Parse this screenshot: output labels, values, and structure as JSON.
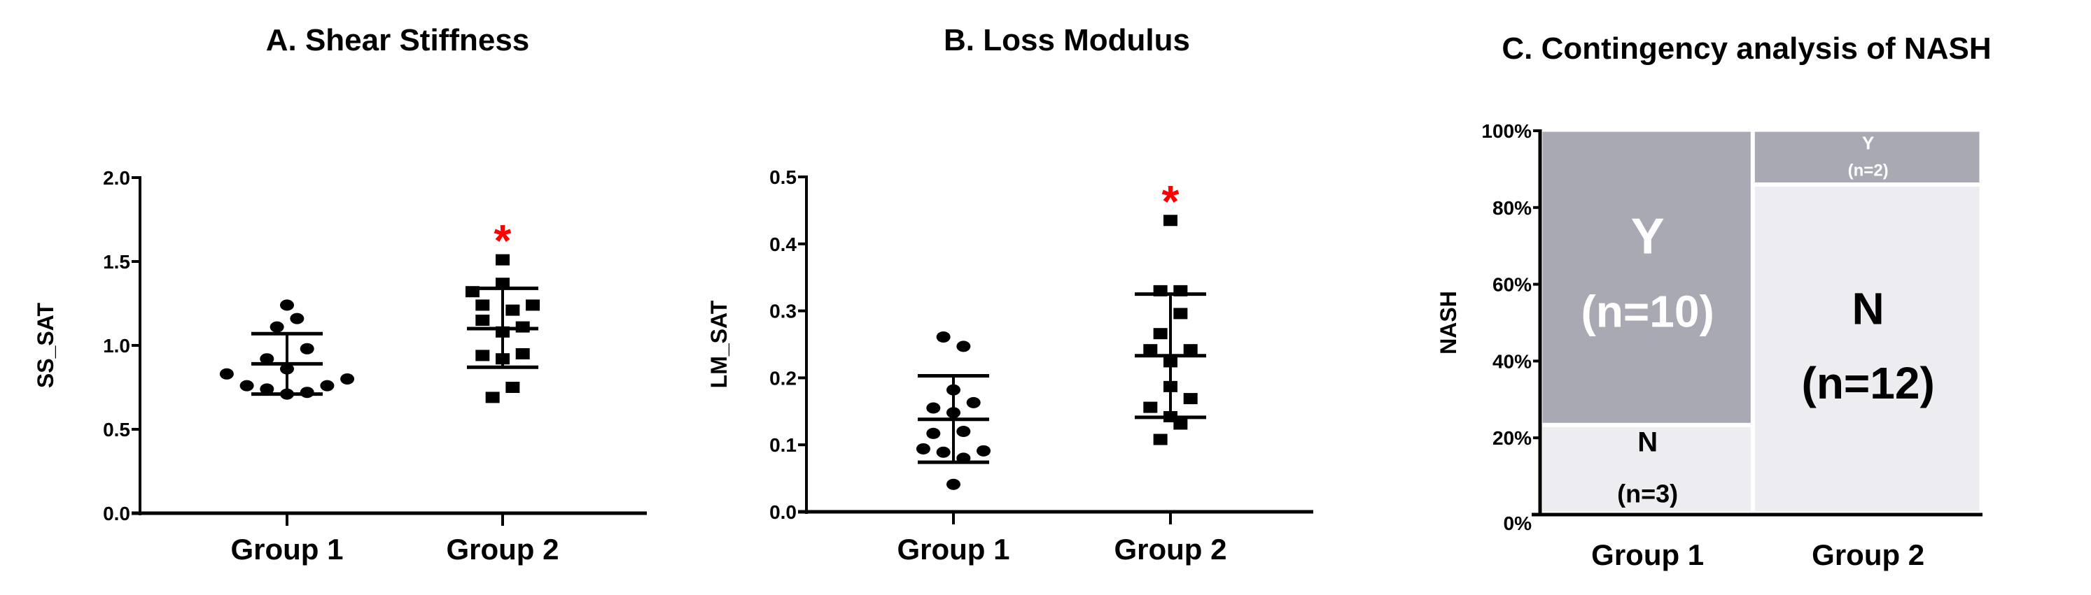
{
  "colors": {
    "marker": "#000000",
    "significance": "#ff0000",
    "yes_cell": "#a9a9b4",
    "no_cell": "#ececf1"
  },
  "chart_data": [
    {
      "type": "scatter",
      "title": "A. Shear Stiffness",
      "ylabel": "SS_SAT",
      "ylim": [
        0,
        2.0
      ],
      "yticks": [
        "0.0",
        "0.5",
        "1.0",
        "1.5",
        "2.0"
      ],
      "ytick_values": [
        0,
        0.5,
        1.0,
        1.5,
        2.0
      ],
      "categories": [
        "Group 1",
        "Group 2"
      ],
      "significance_marker": "*",
      "series": [
        {
          "name": "Group 1",
          "marker": "circle",
          "values": [
            1.24,
            1.16,
            1.11,
            0.98,
            0.92,
            0.86,
            0.83,
            0.8,
            0.76,
            0.74,
            0.76,
            0.71,
            0.72
          ],
          "mean": 0.89,
          "sd_upper": 1.07,
          "sd_lower": 0.71
        },
        {
          "name": "Group 2",
          "marker": "square",
          "values": [
            1.51,
            1.37,
            1.32,
            1.24,
            1.21,
            1.24,
            1.15,
            1.11,
            1.08,
            0.94,
            0.95,
            0.92,
            0.75,
            0.69
          ],
          "mean": 1.1,
          "sd_upper": 1.34,
          "sd_lower": 0.87
        }
      ]
    },
    {
      "type": "scatter",
      "title": "B. Loss Modulus",
      "ylabel": "LM_SAT",
      "ylim": [
        0,
        0.5
      ],
      "yticks": [
        "0.0",
        "0.1",
        "0.2",
        "0.3",
        "0.4",
        "0.5"
      ],
      "ytick_values": [
        0,
        0.1,
        0.2,
        0.3,
        0.4,
        0.5
      ],
      "categories": [
        "Group 1",
        "Group 2"
      ],
      "significance_marker": "*",
      "series": [
        {
          "name": "Group 1",
          "marker": "circle",
          "values": [
            0.261,
            0.247,
            0.182,
            0.163,
            0.155,
            0.148,
            0.12,
            0.117,
            0.094,
            0.089,
            0.091,
            0.08,
            0.041
          ],
          "mean": 0.138,
          "sd_upper": 0.203,
          "sd_lower": 0.074
        },
        {
          "name": "Group 2",
          "marker": "square",
          "values": [
            0.435,
            0.33,
            0.33,
            0.296,
            0.266,
            0.242,
            0.242,
            0.224,
            0.187,
            0.169,
            0.156,
            0.142,
            0.131,
            0.108
          ],
          "mean": 0.233,
          "sd_upper": 0.325,
          "sd_lower": 0.141
        }
      ]
    },
    {
      "type": "mosaic",
      "title": "C. Contingency analysis of NASH",
      "ylabel": "NASH",
      "yticks": [
        "0%",
        "20%",
        "40%",
        "60%",
        "80%",
        "100%"
      ],
      "ytick_values": [
        0,
        20,
        40,
        60,
        80,
        100
      ],
      "categories": [
        "Group 1",
        "Group 2"
      ],
      "groups": [
        {
          "name": "Group 1",
          "cells": [
            {
              "label": "N",
              "count_label": "(n=3)",
              "n": 3
            },
            {
              "label": "Y",
              "count_label": "(n=10)",
              "n": 10
            }
          ]
        },
        {
          "name": "Group 2",
          "cells": [
            {
              "label": "N",
              "count_label": "(n=12)",
              "n": 12
            },
            {
              "label": "Y",
              "count_label": "(n=2)",
              "n": 2
            }
          ]
        }
      ]
    }
  ]
}
